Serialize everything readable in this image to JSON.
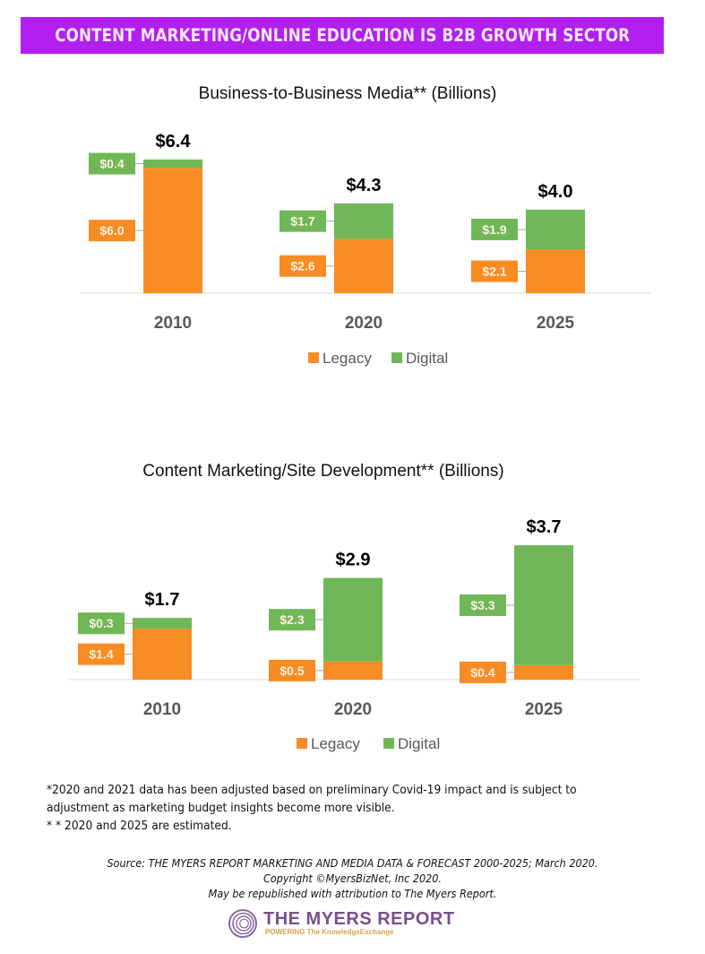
{
  "banner": {
    "text": "CONTENT MARKETING/ONLINE EDUCATION IS B2B GROWTH SECTOR",
    "color": "#b21ff0"
  },
  "colors": {
    "legacy": "#f68c23",
    "digital": "#6fb757"
  },
  "chart_data": [
    {
      "type": "bar",
      "stacked": true,
      "title": "Business-to-Business Media** (Billions)",
      "categories": [
        "2010",
        "2020",
        "2025"
      ],
      "series": [
        {
          "name": "Legacy",
          "values": [
            6.0,
            2.6,
            2.1
          ],
          "labels": [
            "$6.0",
            "$2.6",
            "$2.1"
          ]
        },
        {
          "name": "Digital",
          "values": [
            0.4,
            1.7,
            1.9
          ],
          "labels": [
            "$0.4",
            "$1.7",
            "$1.9"
          ]
        }
      ],
      "totals": [
        "$6.4",
        "$4.3",
        "$4.0"
      ],
      "ylim": [
        0,
        6.4
      ],
      "xlabel": "",
      "ylabel": "",
      "grid": false,
      "legend_position": "bottom"
    },
    {
      "type": "bar",
      "stacked": true,
      "title": "Content Marketing/Site Development** (Billions)",
      "categories": [
        "2010",
        "2020",
        "2025"
      ],
      "series": [
        {
          "name": "Legacy",
          "values": [
            1.4,
            0.5,
            0.4
          ],
          "labels": [
            "$1.4",
            "$0.5",
            "$0.4"
          ]
        },
        {
          "name": "Digital",
          "values": [
            0.3,
            2.3,
            3.3
          ],
          "labels": [
            "$0.3",
            "$2.3",
            "$3.3"
          ]
        }
      ],
      "totals": [
        "$1.7",
        "$2.9",
        "$3.7"
      ],
      "ylim": [
        0,
        3.7
      ],
      "xlabel": "",
      "ylabel": "",
      "grid": false,
      "legend_position": "bottom"
    }
  ],
  "notes": [
    "*2020 and 2021 data has been adjusted based on preliminary Covid-19 impact and is subject to",
    "adjustment as marketing budget insights become more visible.",
    "* * 2020 and 2025 are estimated."
  ],
  "source": [
    "Source: THE MYERS REPORT MARKETING AND MEDIA DATA & FORECAST 2000-2025; March 2020.",
    "Copyright ©MyersBizNet, Inc 2020.",
    "May be republished with attribution to The Myers Report."
  ],
  "logo": {
    "name": "THE MYERS REPORT",
    "tagline": "POWERING The KnowledgeExchange",
    "icon": "concentric-ring-logo-icon"
  }
}
